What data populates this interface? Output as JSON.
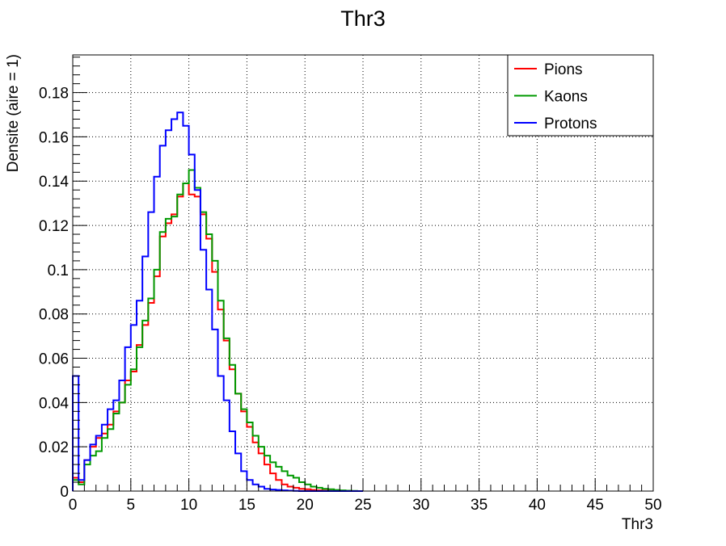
{
  "chart_data": {
    "type": "line",
    "step": true,
    "title": "Thr3",
    "xlabel": "Thr3",
    "ylabel": "Densite (aire = 1)",
    "xlim": [
      0,
      50
    ],
    "ylim": [
      0,
      0.197
    ],
    "x_ticks": [
      0,
      5,
      10,
      15,
      20,
      25,
      30,
      35,
      40,
      45,
      50
    ],
    "x_tick_labels": [
      "0",
      "5",
      "10",
      "15",
      "20",
      "25",
      "30",
      "35",
      "40",
      "45",
      "50"
    ],
    "y_ticks": [
      0,
      0.02,
      0.04,
      0.06,
      0.08,
      0.1,
      0.12,
      0.14,
      0.16,
      0.18
    ],
    "y_tick_labels": [
      "0",
      "0.02",
      "0.04",
      "0.06",
      "0.08",
      "0.1",
      "0.12",
      "0.14",
      "0.16",
      "0.18"
    ],
    "grid": true,
    "legend_position": "top-right",
    "bin_width": 0.5,
    "bin_start": 0,
    "series": [
      {
        "name": "Pions",
        "color": "#ff0000",
        "values": [
          0.006,
          0.004,
          0.014,
          0.02,
          0.024,
          0.026,
          0.03,
          0.036,
          0.04,
          0.05,
          0.054,
          0.066,
          0.075,
          0.085,
          0.097,
          0.115,
          0.121,
          0.125,
          0.133,
          0.139,
          0.134,
          0.133,
          0.125,
          0.114,
          0.099,
          0.082,
          0.068,
          0.055,
          0.044,
          0.036,
          0.029,
          0.022,
          0.017,
          0.012,
          0.008,
          0.005,
          0.003,
          0.002,
          0.0015,
          0.001,
          0.0008,
          0.0005,
          0.0003,
          0.0002,
          0.0001,
          0.0001,
          0,
          0,
          0,
          0
        ]
      },
      {
        "name": "Kaons",
        "color": "#009900",
        "values": [
          0.005,
          0.003,
          0.012,
          0.016,
          0.018,
          0.024,
          0.028,
          0.035,
          0.04,
          0.048,
          0.055,
          0.065,
          0.077,
          0.087,
          0.1,
          0.117,
          0.123,
          0.124,
          0.134,
          0.139,
          0.145,
          0.137,
          0.126,
          0.116,
          0.104,
          0.086,
          0.069,
          0.057,
          0.044,
          0.037,
          0.031,
          0.025,
          0.02,
          0.016,
          0.013,
          0.011,
          0.009,
          0.007,
          0.006,
          0.004,
          0.003,
          0.002,
          0.0015,
          0.001,
          0.0008,
          0.0005,
          0.0003,
          0.0002,
          0.0001,
          0
        ]
      },
      {
        "name": "Protons",
        "color": "#0000ff",
        "values": [
          0.052,
          0.005,
          0.014,
          0.021,
          0.025,
          0.03,
          0.037,
          0.041,
          0.05,
          0.065,
          0.075,
          0.086,
          0.106,
          0.126,
          0.142,
          0.156,
          0.163,
          0.168,
          0.171,
          0.165,
          0.152,
          0.136,
          0.109,
          0.091,
          0.073,
          0.052,
          0.041,
          0.027,
          0.017,
          0.009,
          0.005,
          0.003,
          0.002,
          0.001,
          0.0007,
          0.0005,
          0.0003,
          0.0002,
          0.0001,
          0,
          0,
          0,
          0,
          0,
          0,
          0,
          0,
          0,
          0,
          0
        ]
      }
    ]
  }
}
